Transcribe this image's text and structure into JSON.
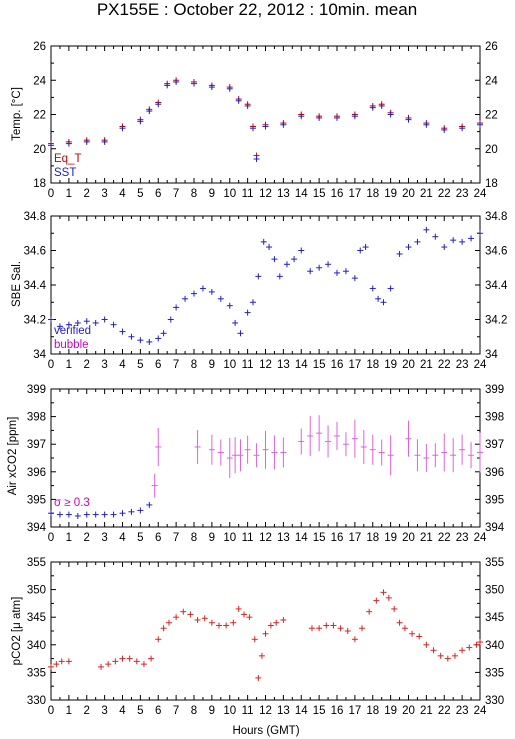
{
  "page_title": "PX155E : October 22, 2012 : 10min. mean",
  "x_axis_label": "Hours (GMT)",
  "colors": {
    "eq_t": "#cc0000",
    "sst": "#2020cc",
    "verified": "#2020cc",
    "bubble": "#cc00cc",
    "air": "#2020cc",
    "air_flagged": "#e060e0",
    "pco2": "#e02020"
  },
  "chart_data": [
    {
      "type": "scatter",
      "ylabel_text": "Temp. [°C]",
      "ylim": [
        18,
        26
      ],
      "yticks": [
        "18",
        "20",
        "22",
        "24",
        "26"
      ],
      "xlim": [
        0,
        24
      ],
      "xticks": [
        "0",
        "1",
        "2",
        "3",
        "4",
        "5",
        "6",
        "7",
        "8",
        "9",
        "10",
        "11",
        "12",
        "13",
        "14",
        "15",
        "16",
        "17",
        "18",
        "19",
        "20",
        "21",
        "22",
        "23",
        "24"
      ],
      "legend": [
        "Eq_T",
        "SST"
      ],
      "series": [
        {
          "name": "Eq_T",
          "x": [
            0,
            1,
            2,
            3,
            4,
            5,
            5.5,
            6,
            6.5,
            7,
            8,
            9,
            10,
            10.5,
            11,
            11.3,
            11.5,
            12,
            13,
            14,
            15,
            16,
            17,
            18,
            18.5,
            19,
            20,
            21,
            22,
            23,
            24
          ],
          "y": [
            20.3,
            20.4,
            20.5,
            20.5,
            21.3,
            21.7,
            22.3,
            22.7,
            23.8,
            24.0,
            23.9,
            23.7,
            23.6,
            22.9,
            22.6,
            21.3,
            19.6,
            21.4,
            21.5,
            22.0,
            21.9,
            21.9,
            22.0,
            22.5,
            22.6,
            22.1,
            21.8,
            21.5,
            21.2,
            21.3,
            21.5
          ]
        },
        {
          "name": "SST",
          "x": [
            0,
            1,
            2,
            3,
            4,
            5,
            5.5,
            6,
            6.5,
            7,
            8,
            9,
            10,
            10.5,
            11,
            11.3,
            11.5,
            12,
            13,
            14,
            15,
            16,
            17,
            18,
            18.5,
            19,
            20,
            21,
            22,
            23,
            24
          ],
          "y": [
            20.2,
            20.3,
            20.4,
            20.4,
            21.2,
            21.6,
            22.2,
            22.6,
            23.7,
            23.9,
            23.8,
            23.6,
            23.5,
            22.8,
            22.5,
            21.2,
            19.4,
            21.3,
            21.4,
            21.9,
            21.8,
            21.8,
            21.9,
            22.4,
            22.5,
            22.0,
            21.7,
            21.4,
            21.1,
            21.2,
            21.4
          ]
        }
      ]
    },
    {
      "type": "scatter",
      "ylabel_text": "SBE Sal.",
      "ylim": [
        34,
        34.8
      ],
      "yticks": [
        "34",
        "34.2",
        "34.4",
        "34.6",
        "34.8"
      ],
      "xlim": [
        0,
        24
      ],
      "xticks": [
        "0",
        "1",
        "2",
        "3",
        "4",
        "5",
        "6",
        "7",
        "8",
        "9",
        "10",
        "11",
        "12",
        "13",
        "14",
        "15",
        "16",
        "17",
        "18",
        "19",
        "20",
        "21",
        "22",
        "23",
        "24"
      ],
      "legend": [
        "verified",
        "bubble"
      ],
      "series": [
        {
          "name": "verified",
          "x": [
            0,
            0.5,
            1,
            1.5,
            2,
            2.5,
            3,
            3.5,
            4,
            4.5,
            5,
            5.5,
            6,
            6.3,
            6.7,
            7,
            7.5,
            8,
            8.5,
            9,
            9.5,
            10,
            10.3,
            10.6,
            11,
            11.3,
            11.6,
            11.9,
            12.2,
            12.5,
            12.8,
            13.2,
            13.6,
            14,
            14.5,
            15,
            15.5,
            16,
            16.5,
            17,
            17.3,
            17.6,
            18,
            18.3,
            18.6,
            19,
            19.5,
            20,
            20.5,
            21,
            21.5,
            22,
            22.5,
            23,
            23.5,
            24
          ],
          "y": [
            34.2,
            34.16,
            34.17,
            34.18,
            34.19,
            34.18,
            34.2,
            34.17,
            34.13,
            34.1,
            34.08,
            34.07,
            34.09,
            34.12,
            34.2,
            34.27,
            34.32,
            34.35,
            34.38,
            34.36,
            34.32,
            34.28,
            34.18,
            34.12,
            34.24,
            34.3,
            34.45,
            34.65,
            34.62,
            34.55,
            34.45,
            34.52,
            34.55,
            34.6,
            34.48,
            34.5,
            34.52,
            34.47,
            34.48,
            34.44,
            34.6,
            34.62,
            34.38,
            34.32,
            34.3,
            34.38,
            34.58,
            34.62,
            34.65,
            34.72,
            34.68,
            34.62,
            34.66,
            34.65,
            34.67,
            34.7
          ]
        },
        {
          "name": "bubble",
          "x": [],
          "y": []
        }
      ]
    },
    {
      "type": "scatter",
      "ylabel_text": "Air xCO2 [ppm]",
      "ylim": [
        394,
        399
      ],
      "yticks": [
        "394",
        "395",
        "396",
        "397",
        "398",
        "399"
      ],
      "xlim": [
        0,
        24
      ],
      "xticks": [
        "0",
        "1",
        "2",
        "3",
        "4",
        "5",
        "6",
        "7",
        "8",
        "9",
        "10",
        "11",
        "12",
        "13",
        "14",
        "15",
        "16",
        "17",
        "18",
        "19",
        "20",
        "21",
        "22",
        "23",
        "24"
      ],
      "annotation": "σ ≥ 0.3",
      "series": [
        {
          "name": "Air xCO2",
          "x": [
            0,
            0.5,
            1,
            1.5,
            2,
            2.5,
            3,
            3.5,
            4,
            4.5,
            5,
            5.5
          ],
          "y": [
            394.5,
            394.45,
            394.45,
            394.4,
            394.45,
            394.45,
            394.45,
            394.45,
            394.5,
            394.55,
            394.6,
            394.8
          ]
        },
        {
          "name": "σ ≥ 0.3",
          "x": [
            5.8,
            6.0,
            8.2,
            9.0,
            9.5,
            10.0,
            10.3,
            10.6,
            11.0,
            11.5,
            12.0,
            12.5,
            13.0,
            14.0,
            14.5,
            15.0,
            15.5,
            16.0,
            16.5,
            17.0,
            17.5,
            18.0,
            18.5,
            19.0,
            20.0,
            20.5,
            21.0,
            21.5,
            22.0,
            22.5,
            23.0,
            23.5,
            24.0
          ],
          "y": [
            395.5,
            396.9,
            396.9,
            396.8,
            396.7,
            396.5,
            396.6,
            396.6,
            396.8,
            396.6,
            396.8,
            396.7,
            396.7,
            397.1,
            397.3,
            397.4,
            397.1,
            397.3,
            397.0,
            397.2,
            396.9,
            396.8,
            396.7,
            396.6,
            397.2,
            396.6,
            396.5,
            396.6,
            396.7,
            396.6,
            396.8,
            396.6,
            396.7
          ]
        }
      ]
    },
    {
      "type": "scatter",
      "ylabel_text": "pCO2 [μ atm]",
      "ylim": [
        330,
        355
      ],
      "yticks": [
        "330",
        "335",
        "340",
        "345",
        "350",
        "355"
      ],
      "xlim": [
        0,
        24
      ],
      "xticks": [
        "0",
        "1",
        "2",
        "3",
        "4",
        "5",
        "6",
        "7",
        "8",
        "9",
        "10",
        "11",
        "12",
        "13",
        "14",
        "15",
        "16",
        "17",
        "18",
        "19",
        "20",
        "21",
        "22",
        "23",
        "24"
      ],
      "series": [
        {
          "name": "pCO2",
          "x": [
            0,
            0.3,
            0.6,
            1.0,
            2.8,
            3.2,
            3.6,
            4.0,
            4.4,
            4.8,
            5.2,
            5.6,
            6.0,
            6.3,
            6.6,
            7.0,
            7.4,
            7.8,
            8.2,
            8.6,
            9.0,
            9.4,
            9.8,
            10.2,
            10.5,
            10.8,
            11.1,
            11.4,
            11.6,
            11.8,
            12.0,
            12.3,
            12.6,
            13.0,
            14.6,
            15.0,
            15.4,
            15.8,
            16.2,
            16.6,
            17.0,
            17.4,
            17.8,
            18.2,
            18.6,
            18.9,
            19.2,
            19.5,
            19.8,
            20.2,
            20.6,
            21.0,
            21.4,
            21.8,
            22.2,
            22.6,
            23.0,
            23.4,
            23.8,
            24.0
          ],
          "y": [
            336,
            336.5,
            337,
            337,
            336,
            336.5,
            337,
            337.5,
            337.5,
            337,
            336.5,
            337.5,
            341,
            343,
            344,
            345,
            346,
            345.5,
            344.5,
            344.8,
            344,
            343.5,
            343.5,
            344,
            346.5,
            345.5,
            345,
            341,
            334,
            338,
            342,
            343.5,
            344,
            344.5,
            343,
            343,
            343.5,
            343.5,
            343,
            342.5,
            341,
            343,
            346,
            348,
            349.5,
            348.5,
            346.5,
            344,
            343,
            342,
            341.5,
            340,
            339,
            338,
            337.5,
            338,
            339,
            339.5,
            340,
            340.5
          ]
        }
      ]
    }
  ]
}
